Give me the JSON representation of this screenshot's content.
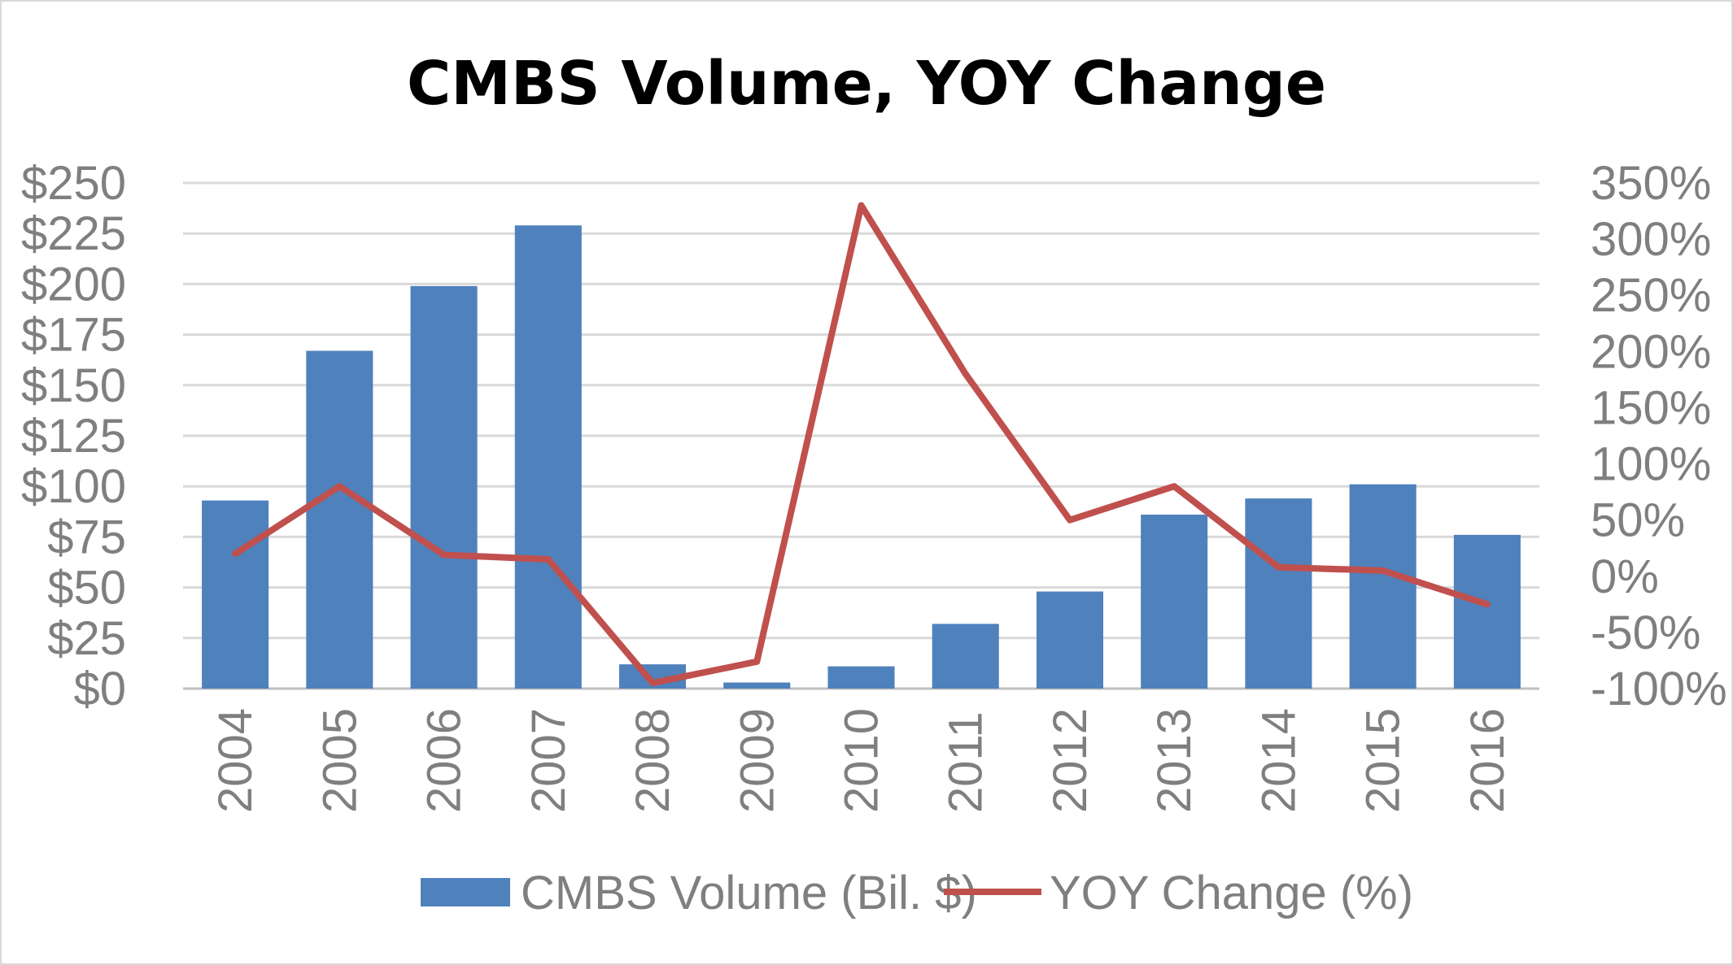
{
  "chart_data": {
    "type": "bar",
    "title": "CMBS Volume, YOY Change",
    "categories": [
      "2004",
      "2005",
      "2006",
      "2007",
      "2008",
      "2009",
      "2010",
      "2011",
      "2012",
      "2013",
      "2014",
      "2015",
      "2016"
    ],
    "series": [
      {
        "name": "CMBS Volume (Bil. $)",
        "type": "bar",
        "axis": "left",
        "color": "#4f81bd",
        "values": [
          93,
          167,
          199,
          229,
          12,
          3,
          11,
          32,
          48,
          86,
          94,
          101,
          76
        ]
      },
      {
        "name": "YOY Change (%)",
        "type": "line",
        "axis": "right",
        "color": "#c0504d",
        "values": [
          20,
          80,
          19,
          15,
          -95,
          -76,
          330,
          180,
          50,
          80,
          8,
          5,
          -25
        ]
      }
    ],
    "y_left": {
      "ylim": [
        0,
        250
      ],
      "ticks": [
        0,
        25,
        50,
        75,
        100,
        125,
        150,
        175,
        200,
        225,
        250
      ],
      "tick_labels": [
        "$0",
        "$25",
        "$50",
        "$75",
        "$100",
        "$125",
        "$150",
        "$175",
        "$200",
        "$225",
        "$250"
      ]
    },
    "y_right": {
      "ylim": [
        -100,
        350
      ],
      "ticks": [
        -100,
        -50,
        0,
        50,
        100,
        150,
        200,
        250,
        300,
        350
      ],
      "tick_labels": [
        "-100%",
        "-50%",
        "0%",
        "50%",
        "100%",
        "150%",
        "200%",
        "250%",
        "300%",
        "350%"
      ]
    },
    "grid": true,
    "legend_position": "bottom"
  }
}
